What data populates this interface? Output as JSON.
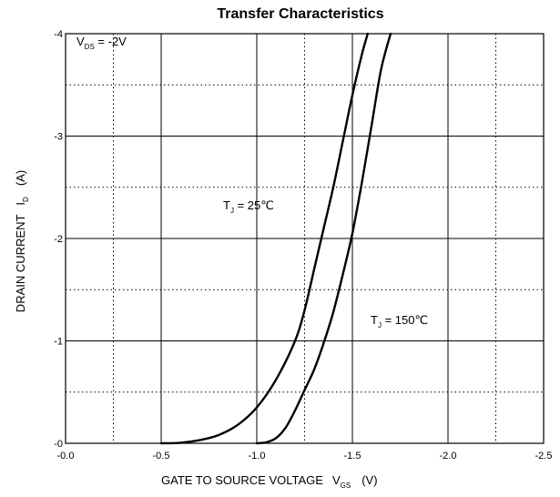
{
  "chart_data": {
    "type": "line",
    "title": "Transfer Characteristics",
    "xlabel": {
      "prefix": "GATE TO SOURCE VOLTAGE",
      "symbol": "V",
      "subscript": "GS",
      "unit": "(V)"
    },
    "ylabel": {
      "prefix": "DRAIN CURRENT",
      "symbol": "I",
      "subscript": "D",
      "unit": "(A)"
    },
    "xlim": [
      0,
      -2.5
    ],
    "ylim": [
      0,
      -4
    ],
    "x_ticks": [
      0,
      -0.5,
      -1.0,
      -1.5,
      -2.0,
      -2.5
    ],
    "x_tick_labels": [
      "-0.0",
      "-0.5",
      "-1.0",
      "-1.5",
      "-2.0",
      "-2.5"
    ],
    "y_ticks": [
      0,
      -1,
      -2,
      -3,
      -4
    ],
    "y_tick_labels": [
      "-0",
      "-1",
      "-2",
      "-3",
      "-4"
    ],
    "x_minor_ticks": [
      -0.25,
      -1.25,
      -2.25
    ],
    "y_minor_ticks": [
      -0.5,
      -1.5,
      -2.5,
      -3.5
    ],
    "grid": true,
    "condition": {
      "symbol": "V",
      "subscript": "DS",
      "value": " = -2V"
    },
    "series": [
      {
        "label": {
          "symbol": "T",
          "subscript": "J",
          "value": " = 25℃"
        },
        "x": [
          -0.5,
          -0.6,
          -0.7,
          -0.8,
          -0.9,
          -1.0,
          -1.1,
          -1.2,
          -1.25,
          -1.3,
          -1.35,
          -1.4,
          -1.45,
          -1.5,
          -1.55,
          -1.58
        ],
        "y": [
          0,
          -0.005,
          -0.03,
          -0.08,
          -0.18,
          -0.35,
          -0.62,
          -1.0,
          -1.3,
          -1.7,
          -2.1,
          -2.5,
          -2.95,
          -3.4,
          -3.8,
          -4.0
        ]
      },
      {
        "label": {
          "symbol": "T",
          "subscript": "J",
          "value": " = 150℃"
        },
        "x": [
          -1.0,
          -1.05,
          -1.1,
          -1.15,
          -1.2,
          -1.25,
          -1.3,
          -1.35,
          -1.4,
          -1.45,
          -1.5,
          -1.55,
          -1.6,
          -1.65,
          -1.7
        ],
        "y": [
          0,
          -0.01,
          -0.05,
          -0.15,
          -0.32,
          -0.52,
          -0.72,
          -0.98,
          -1.28,
          -1.65,
          -2.05,
          -2.55,
          -3.1,
          -3.65,
          -4.0
        ]
      }
    ]
  }
}
